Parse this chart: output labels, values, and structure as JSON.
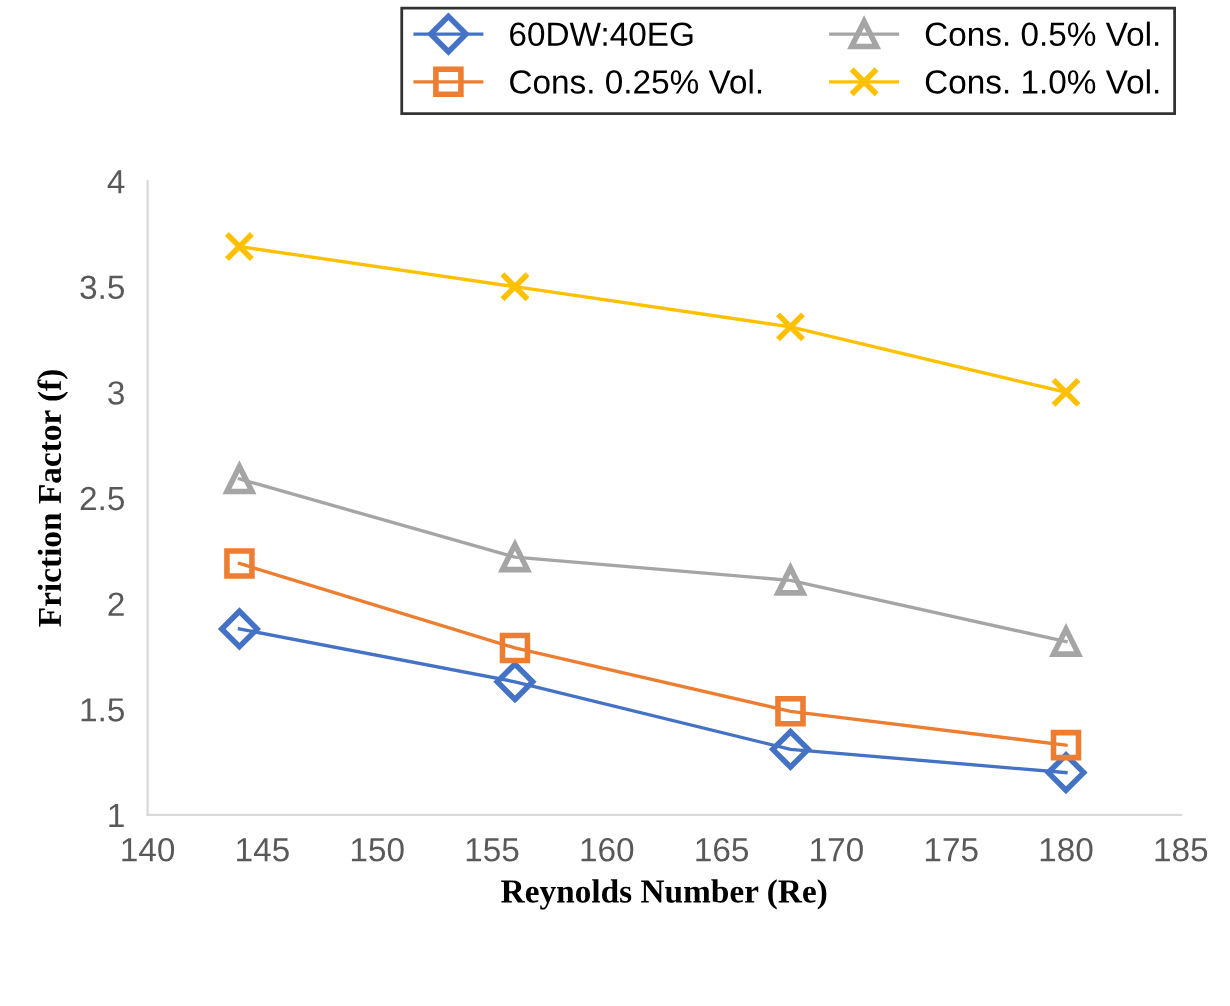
{
  "chart_data": {
    "type": "line",
    "xlabel": "Reynolds Number (Re)",
    "ylabel": "Friction Factor (f)",
    "x": [
      144,
      156,
      168,
      180
    ],
    "series": [
      {
        "name": "60DW:40EG",
        "color": "#4472c4",
        "marker": "diamond",
        "values": [
          1.88,
          1.63,
          1.31,
          1.2
        ]
      },
      {
        "name": "Cons. 0.25% Vol.",
        "color": "#ed7d31",
        "marker": "square",
        "values": [
          2.19,
          1.79,
          1.49,
          1.33
        ]
      },
      {
        "name": "Cons. 0.5% Vol.",
        "color": "#a5a5a5",
        "marker": "triangle",
        "values": [
          2.59,
          2.22,
          2.11,
          1.82
        ]
      },
      {
        "name": "Cons. 1.0% Vol.",
        "color": "#ffc000",
        "marker": "cross",
        "values": [
          3.69,
          3.5,
          3.31,
          3.0
        ]
      }
    ],
    "xlim": [
      140,
      185
    ],
    "xticks": [
      140,
      145,
      150,
      155,
      160,
      165,
      170,
      175,
      180,
      185
    ],
    "ylim": [
      1,
      4
    ],
    "yticks": [
      1,
      1.5,
      2,
      2.5,
      3,
      3.5,
      4
    ],
    "grid": false,
    "legend": "top",
    "line_style": "solid"
  }
}
